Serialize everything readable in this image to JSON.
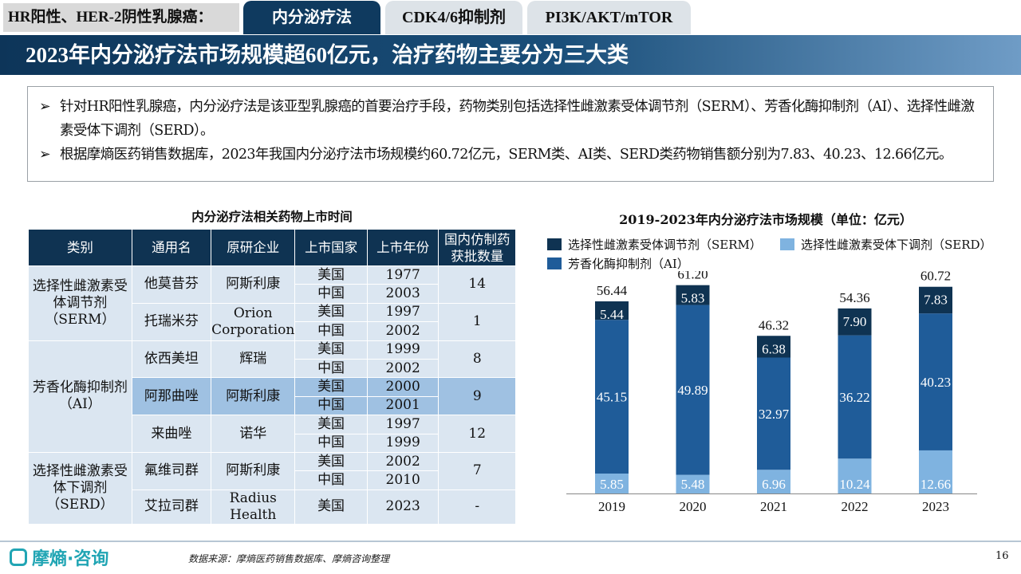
{
  "header": {
    "section_label": "HR阳性、HER-2阴性乳腺癌：",
    "tabs": [
      {
        "label": "内分泌疗法",
        "active": true
      },
      {
        "label": "CDK4/6抑制剂",
        "active": false
      },
      {
        "label": "PI3K/AKT/mTOR",
        "active": false
      }
    ]
  },
  "title": "2023年内分泌疗法市场规模超60亿元，治疗药物主要分为三大类",
  "bullets": [
    "针对HR阳性乳腺癌，内分泌疗法是该亚型乳腺癌的首要治疗手段，药物类别包括选择性雌激素受体调节剂（SERM）、芳香化酶抑制剂（AI）、选择性雌激素受体下调剂（SERD）。",
    "根据摩熵医药销售数据库，2023年我国内分泌疗法市场规模约60.72亿元，SERM类、AI类、SERD类药物销售额分别为7.83、40.23、12.66亿元。"
  ],
  "table": {
    "title": "内分泌疗法相关药物上市时间",
    "headers": [
      "类别",
      "通用名",
      "原研企业",
      "上市国家",
      "上市年份",
      "国内仿制药获批数量"
    ],
    "categories": [
      "选择性雌激素受体调节剂（SERM）",
      "芳香化酶抑制剂（AI）",
      "选择性雌激素受体下调剂（SERD）"
    ],
    "drugs": [
      {
        "name": "他莫昔芬",
        "company": "阿斯利康",
        "countries": [
          "美国",
          "中国"
        ],
        "years": [
          "1977",
          "2003"
        ],
        "count": "14"
      },
      {
        "name": "托瑞米芬",
        "company": "Orion Corporation",
        "countries": [
          "美国",
          "中国"
        ],
        "years": [
          "1997",
          "2002"
        ],
        "count": "1"
      },
      {
        "name": "依西美坦",
        "company": "辉瑞",
        "countries": [
          "美国",
          "中国"
        ],
        "years": [
          "1999",
          "2002"
        ],
        "count": "8"
      },
      {
        "name": "阿那曲唑",
        "company": "阿斯利康",
        "countries": [
          "美国",
          "中国"
        ],
        "years": [
          "2000",
          "2001"
        ],
        "count": "9"
      },
      {
        "name": "来曲唑",
        "company": "诺华",
        "countries": [
          "美国",
          "中国"
        ],
        "years": [
          "1997",
          "1999"
        ],
        "count": "12"
      },
      {
        "name": "氟维司群",
        "company": "阿斯利康",
        "countries": [
          "美国",
          "中国"
        ],
        "years": [
          "2002",
          "2010"
        ],
        "count": "7"
      },
      {
        "name": "艾拉司群",
        "company": "Radius Health",
        "countries": [
          "美国"
        ],
        "years": [
          "2023"
        ],
        "count": "-"
      }
    ]
  },
  "chart_data": {
    "type": "bar",
    "stacked": true,
    "title": "2019-2023年内分泌疗法市场规模（单位：亿元）",
    "categories": [
      "2019",
      "2020",
      "2021",
      "2022",
      "2023"
    ],
    "series": [
      {
        "name": "选择性雌激素受体下调剂（SERD）",
        "values": [
          5.85,
          5.48,
          6.96,
          10.24,
          12.66
        ],
        "color": "#7fb3e0"
      },
      {
        "name": "芳香化酶抑制剂（AI）",
        "values": [
          45.15,
          49.89,
          32.97,
          36.22,
          40.23
        ],
        "color": "#1f5c99"
      },
      {
        "name": "选择性雌激素受体调节剂（SERM）",
        "values": [
          5.44,
          5.83,
          6.38,
          7.9,
          7.83
        ],
        "color": "#0f3352"
      }
    ],
    "totals": [
      56.44,
      61.2,
      46.32,
      54.36,
      60.72
    ],
    "value_labels": {
      "SERD": [
        "5.85",
        "5.48",
        "6.96",
        "10.24",
        "12.66"
      ],
      "AI": [
        "45.15",
        "49.89",
        "32.97",
        "36.22",
        "40.23"
      ],
      "SERM": [
        "5.44",
        "5.83",
        "6.38",
        "7.90",
        "7.83"
      ],
      "totals": [
        "56.44",
        "61.20",
        "46.32",
        "54.36",
        "60.72"
      ]
    },
    "legend": [
      "选择性雌激素受体调节剂（SERM）",
      "选择性雌激素受体下调剂（SERD）",
      "芳香化酶抑制剂（AI）"
    ],
    "legend_position": "top",
    "ylim": [
      0,
      65
    ],
    "grid": false
  },
  "footer": {
    "logo_text": "摩熵·咨询",
    "source": "数据来源：摩熵医药销售数据库、摩熵咨询整理",
    "page": "16"
  }
}
